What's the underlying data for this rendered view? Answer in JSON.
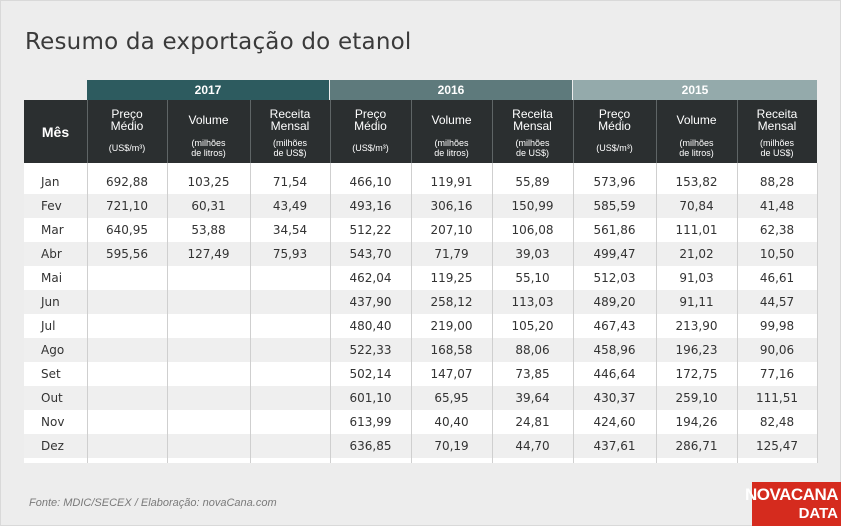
{
  "title": "Resumo da exportação do etanol",
  "source": "Fonte: MDIC/SECEX / Elaboração: novaCana.com",
  "logo": {
    "line1": "NOVACANA",
    "line2": "DATA"
  },
  "colors": {
    "band_2017": "#2d5b5f",
    "band_2016": "#5e7a7c",
    "band_2015": "#94aaab",
    "header_bg": "#2b2f30",
    "logo_bg": "#d52b1e"
  },
  "chart_data": {
    "type": "table",
    "years": [
      "2017",
      "2016",
      "2015"
    ],
    "first_column": "Mês",
    "columns": [
      {
        "label": "Preço\nMédio",
        "unit": "(US$/m³)"
      },
      {
        "label": "Volume",
        "unit": "(milhões\nde litros)"
      },
      {
        "label": "Receita\nMensal",
        "unit": "(milhões\nde US$)"
      }
    ],
    "months": [
      "Jan",
      "Fev",
      "Mar",
      "Abr",
      "Mai",
      "Jun",
      "Jul",
      "Ago",
      "Set",
      "Out",
      "Nov",
      "Dez"
    ],
    "rows": [
      [
        "692,88",
        "103,25",
        "71,54",
        "466,10",
        "119,91",
        "55,89",
        "573,96",
        "153,82",
        "88,28"
      ],
      [
        "721,10",
        "60,31",
        "43,49",
        "493,16",
        "306,16",
        "150,99",
        "585,59",
        "70,84",
        "41,48"
      ],
      [
        "640,95",
        "53,88",
        "34,54",
        "512,22",
        "207,10",
        "106,08",
        "561,86",
        "111,01",
        "62,38"
      ],
      [
        "595,56",
        "127,49",
        "75,93",
        "543,70",
        "71,79",
        "39,03",
        "499,47",
        "21,02",
        "10,50"
      ],
      [
        "",
        "",
        "",
        "462,04",
        "119,25",
        "55,10",
        "512,03",
        "91,03",
        "46,61"
      ],
      [
        "",
        "",
        "",
        "437,90",
        "258,12",
        "113,03",
        "489,20",
        "91,11",
        "44,57"
      ],
      [
        "",
        "",
        "",
        "480,40",
        "219,00",
        "105,20",
        "467,43",
        "213,90",
        "99,98"
      ],
      [
        "",
        "",
        "",
        "522,33",
        "168,58",
        "88,06",
        "458,96",
        "196,23",
        "90,06"
      ],
      [
        "",
        "",
        "",
        "502,14",
        "147,07",
        "73,85",
        "446,64",
        "172,75",
        "77,16"
      ],
      [
        "",
        "",
        "",
        "601,10",
        "65,95",
        "39,64",
        "430,37",
        "259,10",
        "111,51"
      ],
      [
        "",
        "",
        "",
        "613,99",
        "40,40",
        "24,81",
        "424,60",
        "194,26",
        "82,48"
      ],
      [
        "",
        "",
        "",
        "636,85",
        "70,19",
        "44,70",
        "437,61",
        "286,71",
        "125,47"
      ]
    ]
  }
}
